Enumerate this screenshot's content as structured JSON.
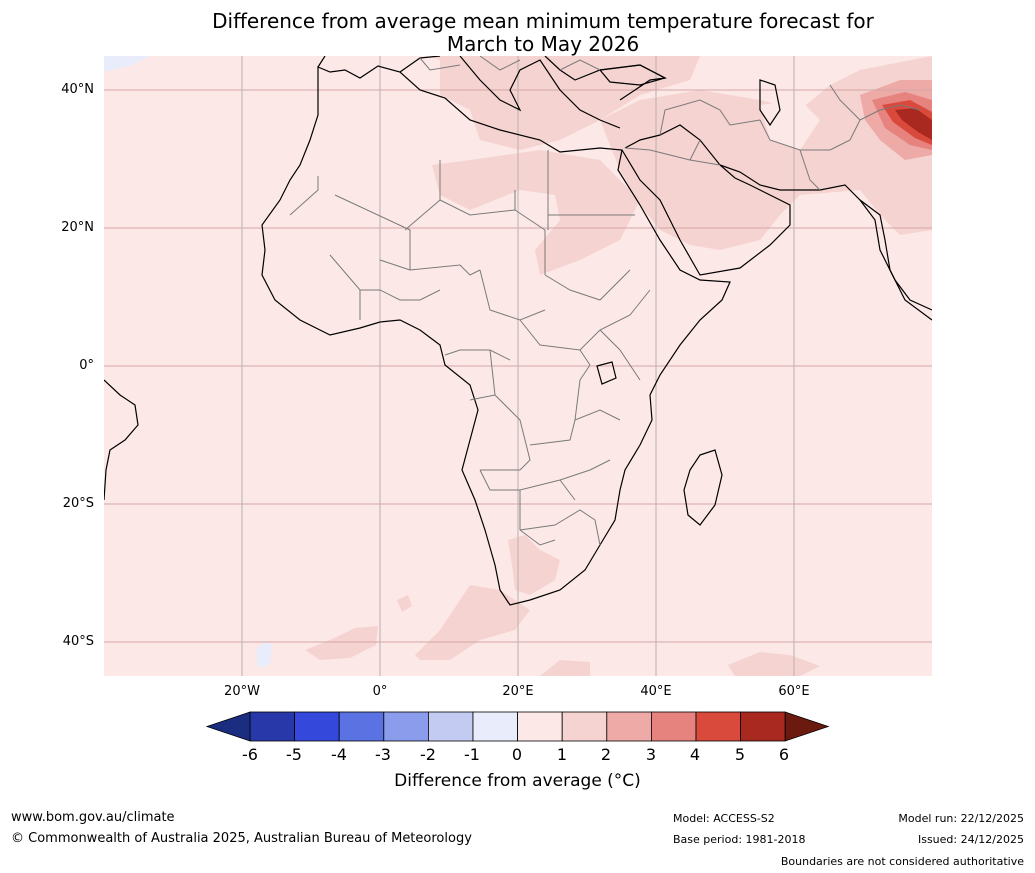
{
  "title": {
    "line1": "Difference from average mean minimum temperature forecast for",
    "line2": "March to May 2026"
  },
  "map": {
    "lat_labels": [
      "40°N",
      "20°N",
      "0°",
      "20°S",
      "40°S"
    ],
    "lon_labels": [
      "20°W",
      "0°",
      "20°E",
      "40°E",
      "60°E"
    ],
    "extent_lon": [
      -40,
      80
    ],
    "extent_lat": [
      -45,
      45
    ],
    "base_anomaly": "0 to 1",
    "colors": {
      "ocean_base": "#fce9e7",
      "gridline": "#d4a5a5",
      "border": "#7a7a7a",
      "coast": "#000000"
    }
  },
  "colorbar": {
    "label": "Difference from average (°C)",
    "ticks": [
      "-6",
      "-5",
      "-4",
      "-3",
      "-2",
      "-1",
      "0",
      "1",
      "2",
      "3",
      "4",
      "5",
      "6"
    ],
    "under_color": "#1a2d80",
    "over_color": "#6b1a10",
    "colors": [
      "#2838a8",
      "#3448dc",
      "#5a72e2",
      "#8a9ceb",
      "#c4cbf3",
      "#e9ecfb",
      "#fce9e7",
      "#f5d3d0",
      "#edaaa6",
      "#e6837e",
      "#d94a3c",
      "#a9281f"
    ]
  },
  "footer": {
    "website": "www.bom.gov.au/climate",
    "copyright": "© Commonwealth of Australia 2025, Australian Bureau of Meteorology",
    "model": "Model: ACCESS-S2",
    "base_period": "Base period: 1981-2018",
    "model_run": "Model run: 22/12/2025",
    "issued": "Issued: 24/12/2025",
    "disclaimer": "Boundaries are not considered authoritative"
  }
}
